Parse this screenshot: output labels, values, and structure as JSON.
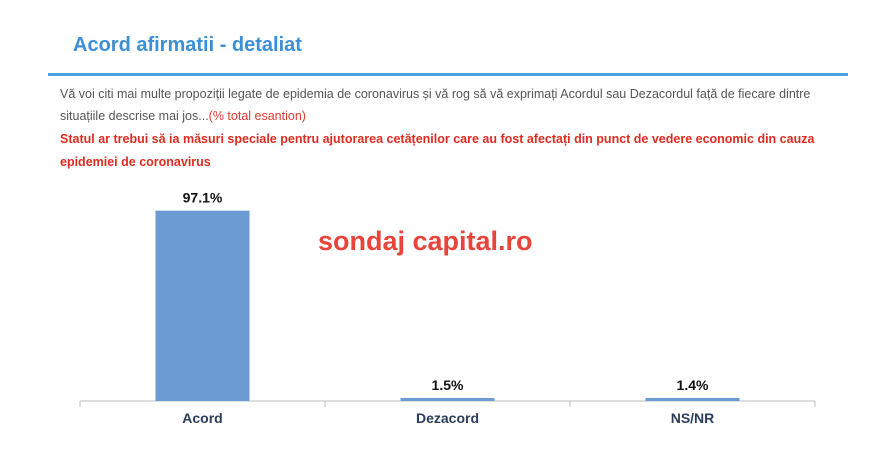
{
  "header": {
    "title": "Acord afirmatii - detaliat"
  },
  "question": {
    "text": "Vă voi citi mai multe propoziții legate de epidemia de coronavirus și vă rog să vă exprimați Acordul sau Dezacordul față de fiecare dintre situațiile descrise mai jos...",
    "sample_note": "(% total esantion)"
  },
  "statement": "Statul ar trebui să ia măsuri speciale pentru ajutorarea cetățenilor care au fost afectați din punct de vedere economic din cauza epidemiei de coronavirus",
  "watermark": "sondaj capital.ro",
  "colors": {
    "bar": "#6b9bd2",
    "title": "#3a8fd6",
    "rule": "#4aa3df",
    "highlight": "#e02b20"
  },
  "chart_data": {
    "type": "bar",
    "categories": [
      "Acord",
      "Dezacord",
      "NS/NR"
    ],
    "values": [
      97.1,
      1.5,
      1.4
    ],
    "value_labels": [
      "97.1%",
      "1.5%",
      "1.4%"
    ],
    "ylim": [
      0,
      100
    ],
    "grid": false,
    "legend": "none"
  }
}
